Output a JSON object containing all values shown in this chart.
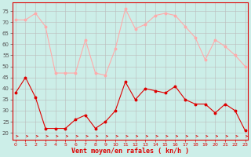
{
  "hours": [
    0,
    1,
    2,
    3,
    4,
    5,
    6,
    7,
    8,
    9,
    10,
    11,
    12,
    13,
    14,
    15,
    16,
    17,
    18,
    19,
    20,
    21,
    22,
    23
  ],
  "wind_avg": [
    38,
    45,
    36,
    22,
    22,
    22,
    26,
    28,
    22,
    25,
    30,
    43,
    35,
    40,
    39,
    38,
    41,
    35,
    33,
    33,
    29,
    33,
    30,
    21
  ],
  "wind_gust": [
    71,
    71,
    74,
    68,
    47,
    47,
    47,
    62,
    47,
    46,
    58,
    76,
    67,
    69,
    73,
    74,
    73,
    68,
    63,
    53,
    62,
    59,
    55,
    50
  ],
  "avg_color": "#dd0000",
  "gust_color": "#ffaaaa",
  "bg_color": "#cceee8",
  "grid_color": "#bbbbbb",
  "xlabel": "Vent moyen/en rafales ( kn/h )",
  "xlabel_color": "#dd0000",
  "ylabel_ticks": [
    20,
    25,
    30,
    35,
    40,
    45,
    50,
    55,
    60,
    65,
    70,
    75
  ],
  "ylim": [
    17,
    79
  ],
  "xlim": [
    -0.3,
    23.3
  ],
  "tick_fontsize": 5,
  "xlabel_fontsize": 6
}
